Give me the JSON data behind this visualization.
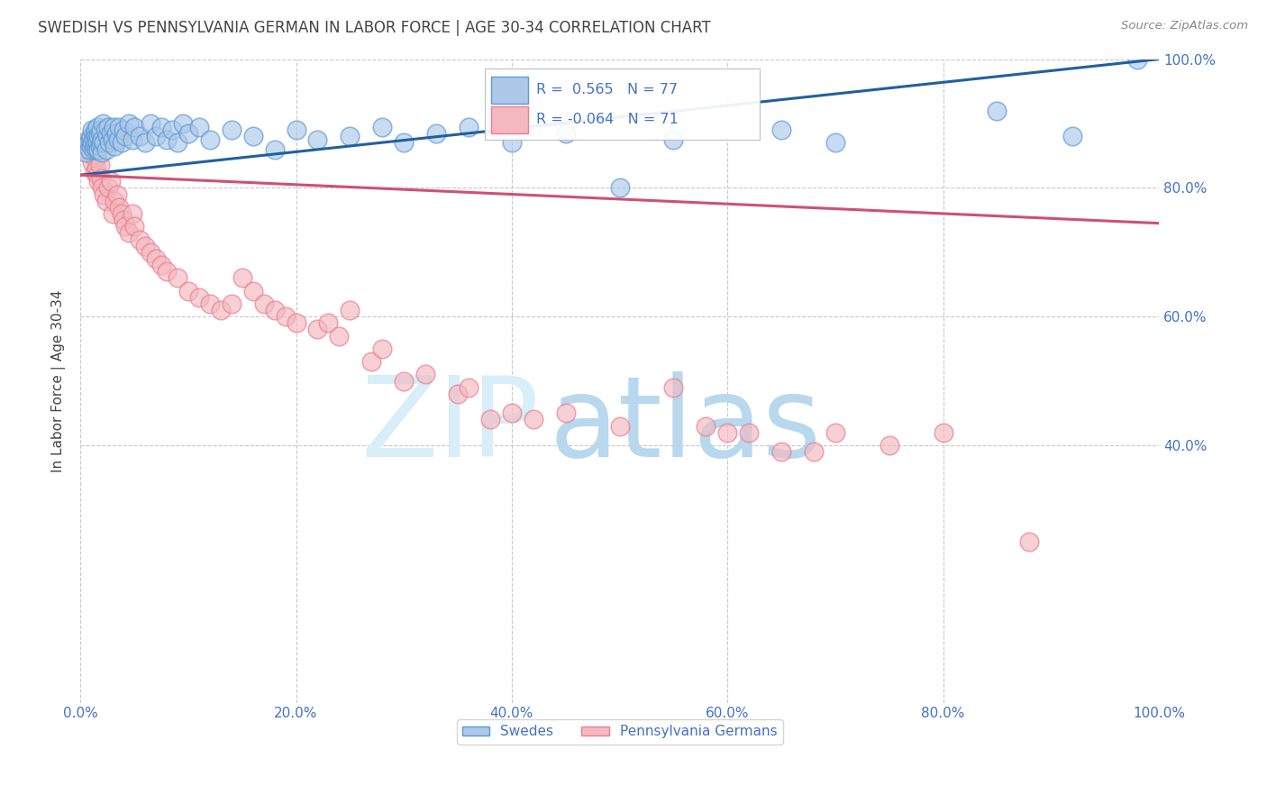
{
  "title": "SWEDISH VS PENNSYLVANIA GERMAN IN LABOR FORCE | AGE 30-34 CORRELATION CHART",
  "source": "Source: ZipAtlas.com",
  "ylabel": "In Labor Force | Age 30-34",
  "watermark": "ZIPatlas",
  "legend_blue_label": "Swedes",
  "legend_pink_label": "Pennsylvania Germans",
  "R_blue": 0.565,
  "N_blue": 77,
  "R_pink": -0.064,
  "N_pink": 71,
  "xlim": [
    0,
    1.0
  ],
  "ylim": [
    0,
    1.0
  ],
  "xticks": [
    0.0,
    0.2,
    0.4,
    0.6,
    0.8,
    1.0
  ],
  "yticks": [
    0.4,
    0.6,
    0.8,
    1.0
  ],
  "xticklabels": [
    "0.0%",
    "20.0%",
    "40.0%",
    "60.0%",
    "80.0%",
    "100.0%"
  ],
  "yticklabels": [
    "40.0%",
    "60.0%",
    "80.0%",
    "100.0%"
  ],
  "blue_scatter_x": [
    0.005,
    0.007,
    0.008,
    0.009,
    0.01,
    0.01,
    0.011,
    0.011,
    0.012,
    0.012,
    0.013,
    0.013,
    0.014,
    0.014,
    0.015,
    0.015,
    0.016,
    0.016,
    0.017,
    0.017,
    0.018,
    0.018,
    0.019,
    0.019,
    0.02,
    0.02,
    0.021,
    0.022,
    0.023,
    0.024,
    0.025,
    0.026,
    0.027,
    0.028,
    0.03,
    0.031,
    0.032,
    0.033,
    0.035,
    0.036,
    0.038,
    0.04,
    0.042,
    0.045,
    0.048,
    0.05,
    0.055,
    0.06,
    0.065,
    0.07,
    0.075,
    0.08,
    0.085,
    0.09,
    0.095,
    0.1,
    0.11,
    0.12,
    0.14,
    0.16,
    0.18,
    0.2,
    0.22,
    0.25,
    0.28,
    0.3,
    0.33,
    0.36,
    0.4,
    0.45,
    0.5,
    0.55,
    0.65,
    0.7,
    0.85,
    0.92,
    0.98
  ],
  "blue_scatter_y": [
    0.855,
    0.87,
    0.86,
    0.875,
    0.865,
    0.88,
    0.87,
    0.89,
    0.86,
    0.875,
    0.865,
    0.885,
    0.87,
    0.89,
    0.86,
    0.88,
    0.87,
    0.895,
    0.86,
    0.88,
    0.865,
    0.885,
    0.87,
    0.89,
    0.855,
    0.875,
    0.9,
    0.87,
    0.89,
    0.86,
    0.88,
    0.895,
    0.87,
    0.885,
    0.875,
    0.895,
    0.865,
    0.885,
    0.875,
    0.895,
    0.87,
    0.89,
    0.88,
    0.9,
    0.875,
    0.895,
    0.88,
    0.87,
    0.9,
    0.88,
    0.895,
    0.875,
    0.89,
    0.87,
    0.9,
    0.885,
    0.895,
    0.875,
    0.89,
    0.88,
    0.86,
    0.89,
    0.875,
    0.88,
    0.895,
    0.87,
    0.885,
    0.895,
    0.87,
    0.885,
    0.8,
    0.875,
    0.89,
    0.87,
    0.92,
    0.88,
    1.0
  ],
  "pink_scatter_x": [
    0.005,
    0.007,
    0.008,
    0.01,
    0.011,
    0.012,
    0.013,
    0.014,
    0.015,
    0.016,
    0.017,
    0.018,
    0.019,
    0.02,
    0.022,
    0.024,
    0.026,
    0.028,
    0.03,
    0.032,
    0.034,
    0.036,
    0.038,
    0.04,
    0.042,
    0.045,
    0.048,
    0.05,
    0.055,
    0.06,
    0.065,
    0.07,
    0.075,
    0.08,
    0.09,
    0.1,
    0.11,
    0.12,
    0.13,
    0.14,
    0.15,
    0.16,
    0.17,
    0.18,
    0.19,
    0.2,
    0.22,
    0.23,
    0.24,
    0.25,
    0.27,
    0.28,
    0.3,
    0.32,
    0.35,
    0.36,
    0.38,
    0.4,
    0.42,
    0.45,
    0.5,
    0.55,
    0.58,
    0.6,
    0.62,
    0.65,
    0.68,
    0.7,
    0.75,
    0.8,
    0.88
  ],
  "pink_scatter_y": [
    0.86,
    0.875,
    0.865,
    0.855,
    0.84,
    0.87,
    0.825,
    0.845,
    0.83,
    0.82,
    0.81,
    0.835,
    0.815,
    0.8,
    0.79,
    0.78,
    0.8,
    0.81,
    0.76,
    0.78,
    0.79,
    0.77,
    0.76,
    0.75,
    0.74,
    0.73,
    0.76,
    0.74,
    0.72,
    0.71,
    0.7,
    0.69,
    0.68,
    0.67,
    0.66,
    0.64,
    0.63,
    0.62,
    0.61,
    0.62,
    0.66,
    0.64,
    0.62,
    0.61,
    0.6,
    0.59,
    0.58,
    0.59,
    0.57,
    0.61,
    0.53,
    0.55,
    0.5,
    0.51,
    0.48,
    0.49,
    0.44,
    0.45,
    0.44,
    0.45,
    0.43,
    0.49,
    0.43,
    0.42,
    0.42,
    0.39,
    0.39,
    0.42,
    0.4,
    0.42,
    0.25
  ],
  "blue_line_x": [
    0.0,
    1.0
  ],
  "blue_line_y_start": 0.82,
  "blue_line_y_end": 1.0,
  "pink_line_x": [
    0.0,
    1.0
  ],
  "pink_line_y_start": 0.82,
  "pink_line_y_end": 0.745,
  "blue_color": "#adc8e8",
  "pink_color": "#f4b8c0",
  "blue_edge_color": "#5b9bd5",
  "pink_edge_color": "#e88090",
  "blue_line_color": "#2060a0",
  "pink_line_color": "#d05070",
  "background_color": "#ffffff",
  "grid_color": "#c8c8c8",
  "title_color": "#444444",
  "axis_tick_color": "#4472c4",
  "watermark_color": "#cce4f5",
  "legend_text_color": "#4472c4"
}
